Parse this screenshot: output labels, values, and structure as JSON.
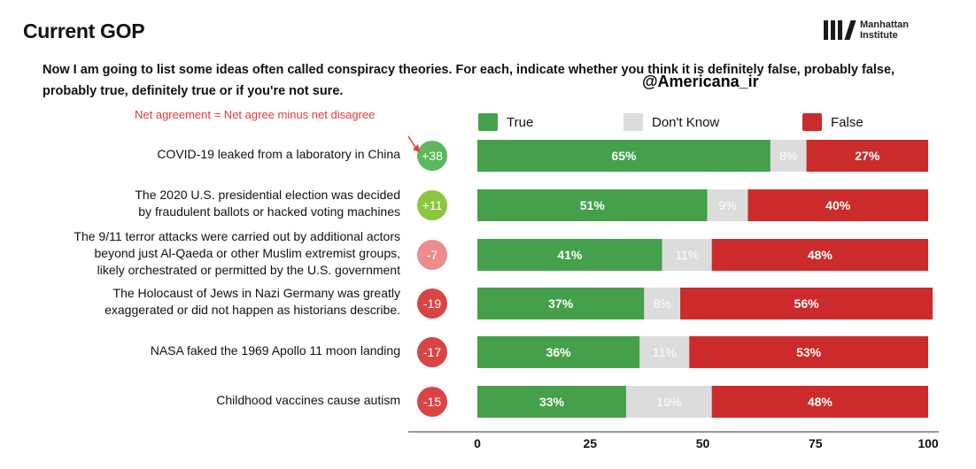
{
  "header": {
    "title": "Current GOP",
    "logo_line1": "Manhattan",
    "logo_line2": "Institute",
    "question": "Now I am going to list some ideas often called conspiracy theories.  For each, indicate whether you think it is definitely false,  probably false, probably true, definitely true or if you're not sure.",
    "handle": "@Americana_ir",
    "net_note": "Net agreement = Net agree minus net disagree"
  },
  "legend": [
    {
      "label": "True",
      "color": "#44a04a"
    },
    {
      "label": "Don't Know",
      "color": "#dcdcdc"
    },
    {
      "label": "False",
      "color": "#cc2b2b"
    }
  ],
  "colors": {
    "true": "#44a04a",
    "dontknow": "#dcdcdc",
    "false": "#cc2b2b",
    "badge_strong_pos": "#5cb85c",
    "badge_pos": "#8cc63f",
    "badge_neg_light": "#ec8c8c",
    "badge_neg": "#d94545",
    "note": "#e53935"
  },
  "chart_data": {
    "type": "bar",
    "orientation": "horizontal",
    "stacked": true,
    "categories": [
      "COVID-19 leaked from a laboratory in China",
      "The 2020 U.S. presidential election was decided\nby fraudulent ballots or hacked voting machines",
      "The 9/11 terror attacks were carried out by additional actors\nbeyond just Al-Qaeda or other Muslim extremist groups,\nlikely orchestrated or permitted by the U.S. government",
      "The Holocaust of Jews in Nazi Germany was greatly\nexaggerated or did not happen as historians describe.",
      "NASA faked the 1969 Apollo 11 moon landing",
      "Childhood vaccines cause autism"
    ],
    "series": [
      {
        "name": "True",
        "values": [
          65,
          51,
          41,
          37,
          36,
          33
        ]
      },
      {
        "name": "Don't Know",
        "values": [
          8,
          9,
          11,
          8,
          11,
          19
        ]
      },
      {
        "name": "False",
        "values": [
          27,
          40,
          48,
          56,
          53,
          48
        ]
      }
    ],
    "net_agreement": [
      "+38",
      "+11",
      "-7",
      "-19",
      "-17",
      "-15"
    ],
    "value_labels": {
      "true": [
        "65%",
        "51%",
        "41%",
        "37%",
        "36%",
        "33%"
      ],
      "dontknow": [
        "8%",
        "9%",
        "11%",
        "8%",
        "11%",
        "19%"
      ],
      "false": [
        "27%",
        "40%",
        "48%",
        "56%",
        "53%",
        "48%"
      ]
    },
    "xlim": [
      0,
      100
    ],
    "xticks": [
      "0",
      "25",
      "50",
      "75",
      "100"
    ],
    "xlabel": "",
    "ylabel": "",
    "legend_position": "top"
  }
}
